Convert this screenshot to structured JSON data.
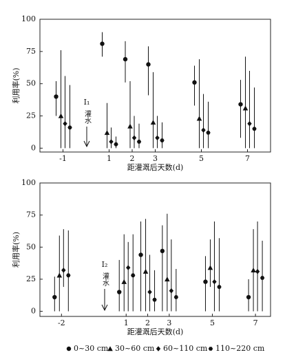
{
  "chart_data": [
    {
      "type": "scatter",
      "title": null,
      "x_label": "距灌溉后天数(d)",
      "y_label": "利用率(%)",
      "annotation": "I₁",
      "annotation_text": "灌水",
      "x": [
        -1,
        1,
        2,
        3,
        5,
        7
      ],
      "xlim": [
        -2,
        8
      ],
      "xticks": [
        -1,
        1,
        2,
        3,
        5,
        7
      ],
      "ylim": [
        -3,
        100
      ],
      "yticks": [
        0,
        25,
        50,
        75,
        100
      ],
      "series": [
        {
          "name": "0~30 cm",
          "marker": "circle",
          "color": "#111",
          "values": [
            40,
            81,
            69,
            65,
            51,
            34
          ],
          "lower": [
            25,
            71,
            51,
            41,
            33,
            8
          ],
          "upper": [
            52,
            90,
            83,
            79,
            64,
            53
          ]
        },
        {
          "name": "30~60 cm",
          "marker": "triangle",
          "color": "#111",
          "values": [
            25,
            12,
            17,
            20,
            23,
            31
          ],
          "lower": [
            0,
            0,
            0,
            0,
            0,
            0
          ],
          "upper": [
            76,
            35,
            52,
            59,
            69,
            71
          ]
        },
        {
          "name": "60~110 cm",
          "marker": "diamond",
          "color": "#111",
          "values": [
            19,
            5,
            8,
            8,
            14,
            19
          ],
          "lower": [
            0,
            0,
            0,
            0,
            0,
            0
          ],
          "upper": [
            56,
            16,
            25,
            25,
            42,
            60
          ]
        },
        {
          "name": "110~220 cm",
          "marker": "hexagon",
          "color": "#111",
          "values": [
            16,
            3,
            5,
            6,
            12,
            15
          ],
          "lower": [
            0,
            0,
            0,
            0,
            0,
            0
          ],
          "upper": [
            49,
            9,
            19,
            20,
            36,
            47
          ]
        }
      ]
    },
    {
      "type": "scatter",
      "x_label": "距灌溉后天数(d)",
      "y_label": "利用率(%)",
      "annotation": "I₂",
      "annotation_text": "灌水",
      "x": [
        -2,
        1,
        2,
        3,
        5,
        7
      ],
      "xlim": [
        -3,
        7.7
      ],
      "xticks": [
        -2,
        1,
        2,
        3,
        5,
        7
      ],
      "ylim": [
        -4,
        100
      ],
      "yticks": [
        0,
        25,
        50,
        75,
        100
      ],
      "series": [
        {
          "marker": "circle",
          "color": "#111",
          "values": [
            11,
            15,
            44,
            47,
            23,
            11
          ],
          "lower": [
            0,
            0,
            0,
            0,
            0,
            0
          ],
          "upper": [
            27,
            40,
            70,
            67,
            43,
            25
          ]
        },
        {
          "marker": "triangle",
          "color": "#111",
          "values": [
            28,
            23,
            31,
            25,
            34,
            32
          ],
          "lower": [
            0,
            0,
            0,
            0,
            19,
            0
          ],
          "upper": [
            59,
            60,
            72,
            76,
            56,
            64
          ]
        },
        {
          "marker": "diamond",
          "color": "#111",
          "values": [
            32,
            34,
            15,
            16,
            23,
            31
          ],
          "lower": [
            19,
            0,
            0,
            0,
            0,
            0
          ],
          "upper": [
            64,
            54,
            44,
            56,
            70,
            70
          ]
        },
        {
          "marker": "hexagon",
          "color": "#111",
          "values": [
            28,
            28,
            9,
            11,
            19,
            26
          ],
          "lower": [
            0,
            0,
            0,
            0,
            0,
            0
          ],
          "upper": [
            63,
            60,
            32,
            33,
            57,
            55
          ]
        }
      ]
    }
  ]
}
